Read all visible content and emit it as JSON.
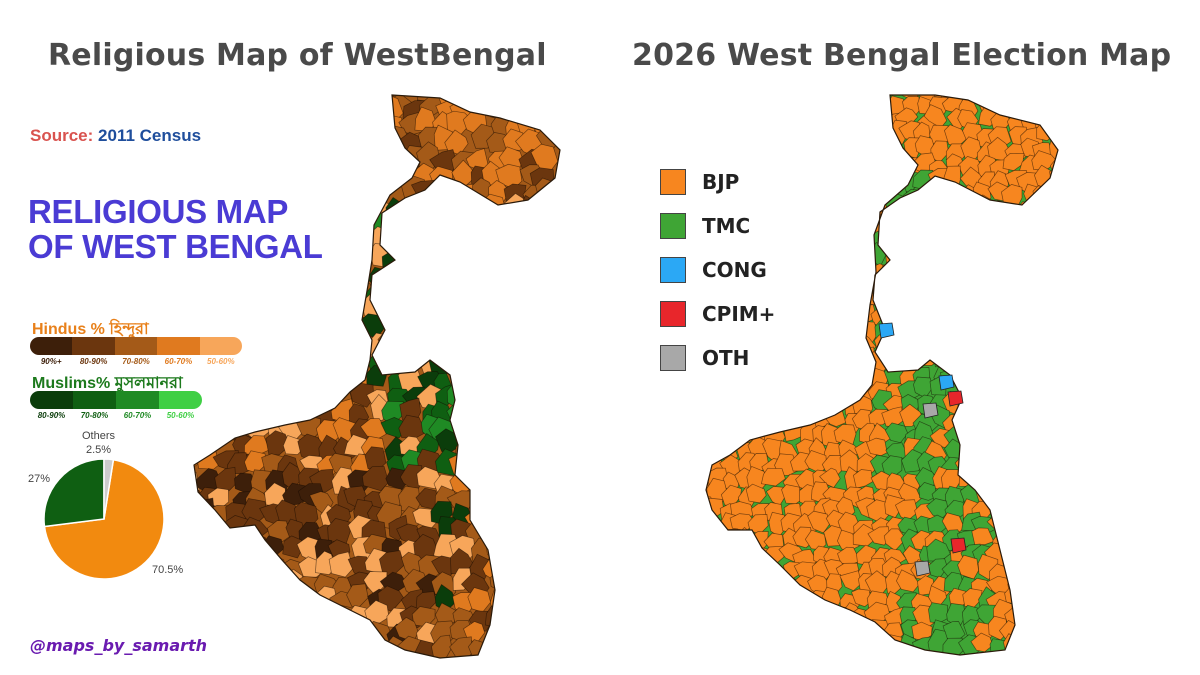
{
  "left_panel": {
    "title": "Religious Map of WestBengal",
    "source_label": "Source:",
    "source_value": "2011 Census",
    "heading_line1": "RELIGIOUS MAP",
    "heading_line2": "OF WEST BENGAL",
    "hindu_legend": {
      "title": "Hindus % হিন্দুরা",
      "bins": [
        "90%+",
        "80-90%",
        "70-80%",
        "60-70%",
        "50-60%"
      ],
      "colors": [
        "#3d1f0a",
        "#6b360e",
        "#a45a18",
        "#e07a1f",
        "#f7a65a"
      ]
    },
    "muslim_legend": {
      "title": "Muslims% মুসলমানরা",
      "bins": [
        "80-90%",
        "70-80%",
        "60-70%",
        "50-60%"
      ],
      "colors": [
        "#0b3d0b",
        "#0f5f12",
        "#1f8a24",
        "#3fcf44"
      ]
    },
    "pie": {
      "slices": [
        {
          "label": "Hindus",
          "value": 70.5,
          "display": "70.5%",
          "color": "#f28a0f"
        },
        {
          "label": "Muslims",
          "value": 27,
          "display": "27%",
          "color": "#0f5f12"
        },
        {
          "label": "Others",
          "value": 2.5,
          "display": "2.5%",
          "color": "#cccccc"
        }
      ],
      "others_label": "Others"
    },
    "handle": "@maps_by_samarth"
  },
  "right_panel": {
    "title": "2026 West Bengal Election Map",
    "legend": [
      {
        "label": "BJP",
        "color": "#f7861f"
      },
      {
        "label": "TMC",
        "color": "#3fa535"
      },
      {
        "label": "CONG",
        "color": "#2ba8f5"
      },
      {
        "label": "CPIM+",
        "color": "#e8262b"
      },
      {
        "label": "OTH",
        "color": "#a8a8a8"
      }
    ]
  }
}
